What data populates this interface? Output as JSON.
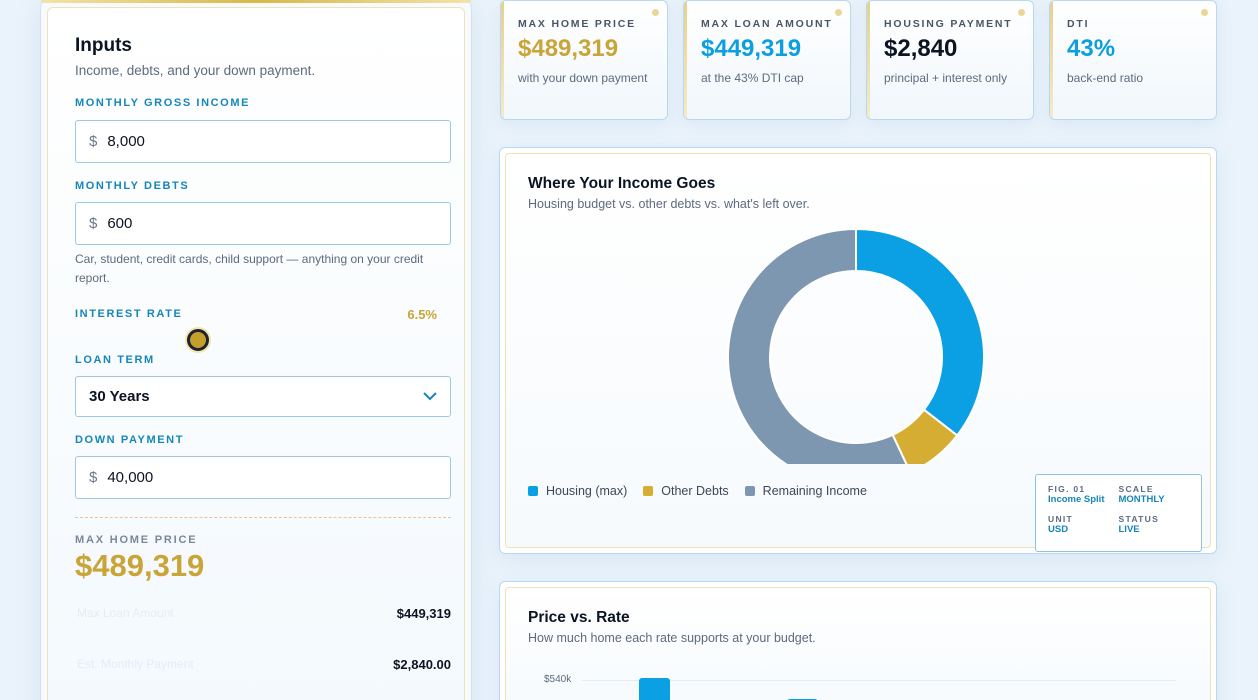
{
  "inputs": {
    "title": "Inputs",
    "subtitle": "Income, debts, and your down payment.",
    "income": {
      "label": "MONTHLY GROSS INCOME",
      "currency": "$",
      "value": "8,000"
    },
    "debts": {
      "label": "MONTHLY DEBTS",
      "currency": "$",
      "value": "600",
      "help": "Car, student, credit cards, child support — anything on your credit report."
    },
    "rate": {
      "label": "INTEREST RATE",
      "value": "6.5%"
    },
    "term": {
      "label": "LOAN TERM",
      "value": "30 Years"
    },
    "down": {
      "label": "DOWN PAYMENT",
      "currency": "$",
      "value": "40,000"
    },
    "summary": {
      "label": "MAX HOME PRICE",
      "value": "$489,319",
      "rows": [
        {
          "key": "Max Loan Amount",
          "value": "$449,319"
        },
        {
          "key": "Est. Monthly Payment",
          "value": "$2,840.00"
        }
      ]
    }
  },
  "stats": [
    {
      "label": "MAX HOME PRICE",
      "value": "$489,319",
      "note": "with your down payment",
      "color": "#c9a436"
    },
    {
      "label": "MAX LOAN AMOUNT",
      "value": "$449,319",
      "note": "at the 43% DTI cap",
      "color": "#0b9fe0"
    },
    {
      "label": "HOUSING PAYMENT",
      "value": "$2,840",
      "note": "principal + interest only",
      "color": "#0b1422"
    },
    {
      "label": "DTI",
      "value": "43%",
      "note": "back-end ratio",
      "color": "#0b9fe0"
    }
  ],
  "income_chart": {
    "title": "Where Your Income Goes",
    "subtitle": "Housing budget vs. other debts vs. what's left over.",
    "legend": [
      {
        "name": "Housing (max)",
        "color": "#0ba0e3"
      },
      {
        "name": "Other Debts",
        "color": "#d6ad33"
      },
      {
        "name": "Remaining Income",
        "color": "#7d97b1"
      }
    ],
    "fig": {
      "fig_label": "FIG. 01",
      "fig_value": "Income Split",
      "scale_label": "SCALE",
      "scale_value": "MONTHLY",
      "unit_label": "UNIT",
      "unit_value": "USD",
      "status_label": "STATUS",
      "status_value": "LIVE"
    }
  },
  "rate_chart": {
    "title": "Price vs. Rate",
    "subtitle": "How much home each rate supports at your budget.",
    "y_tick": "$540k"
  },
  "chart_data": {
    "type": "pie",
    "categories": [
      "Housing (max)",
      "Other Debts",
      "Remaining Income"
    ],
    "values": [
      2840,
      600,
      4560
    ]
  }
}
